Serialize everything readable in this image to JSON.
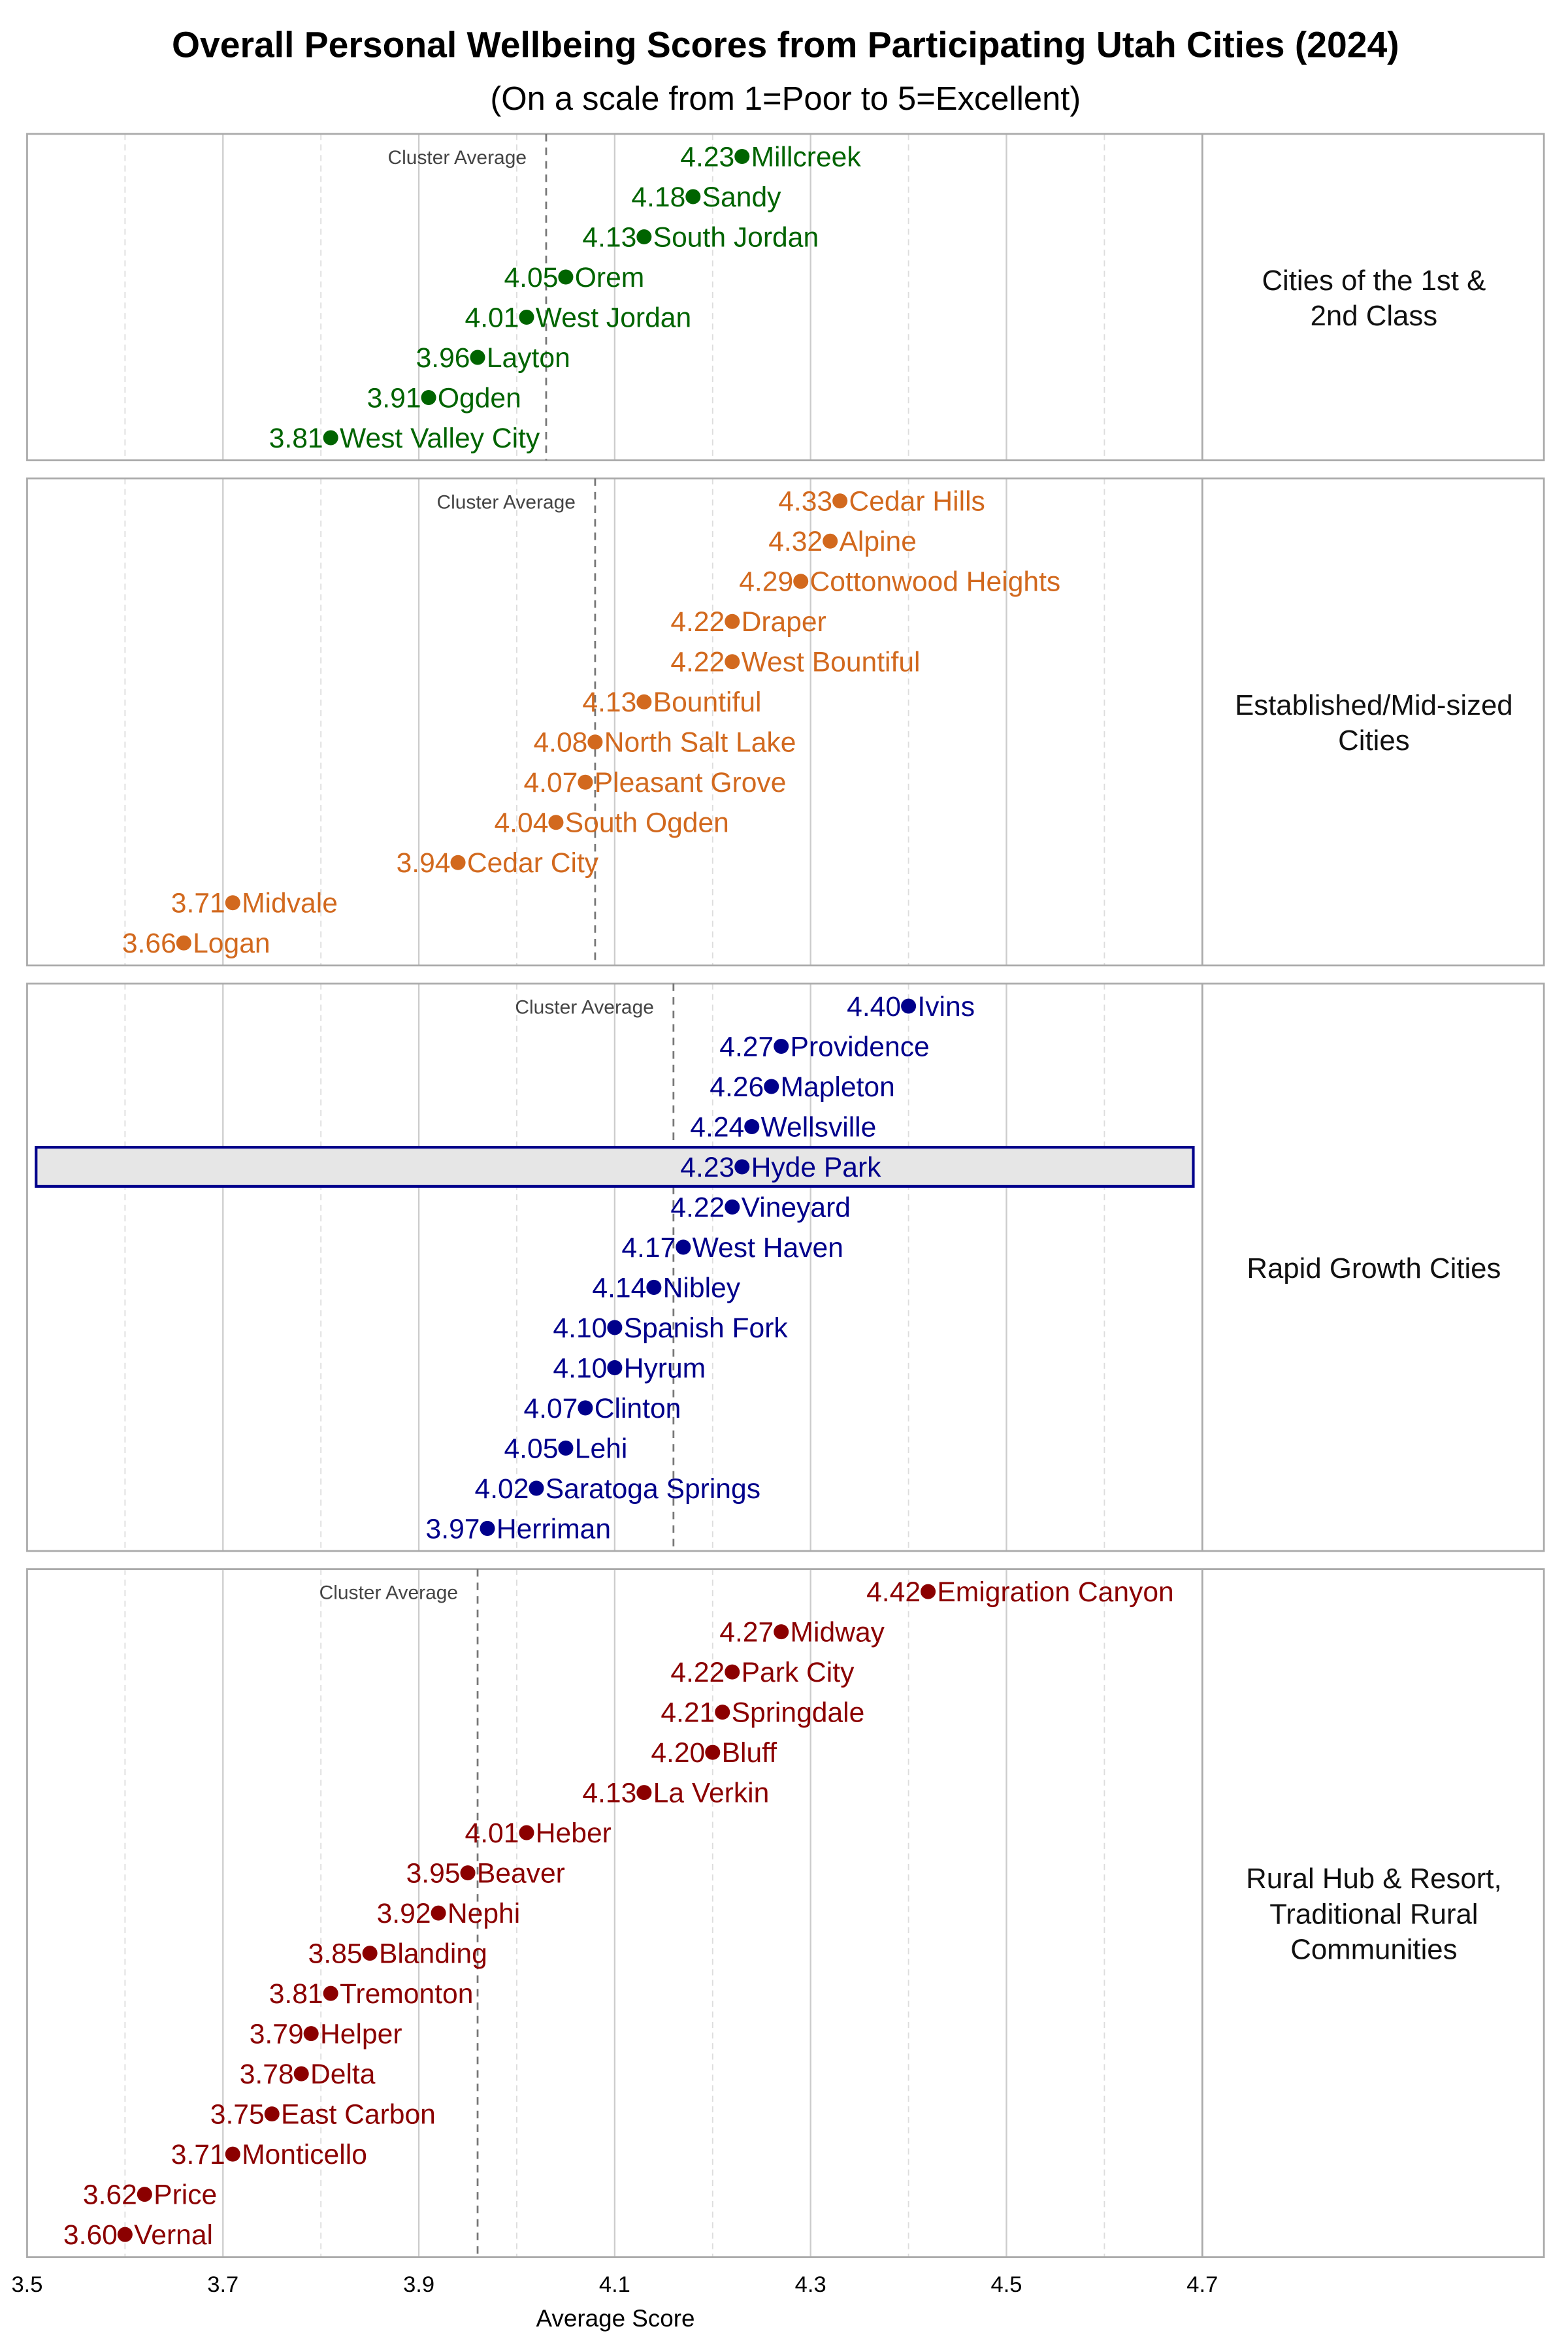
{
  "chart_data": {
    "type": "scatter",
    "title": "Overall Personal Wellbeing Scores from Participating Utah Cities (2024)",
    "subtitle": "(On a scale from 1=Poor to 5=Excellent)",
    "xlabel": "Average Score",
    "xlim": [
      3.5,
      4.7
    ],
    "xticks": [
      "3.5",
      "3.7",
      "3.9",
      "4.1",
      "4.3",
      "4.5",
      "4.7"
    ],
    "grid": true,
    "cluster_average_label": "Cluster Average",
    "highlighted_city": "Hyde Park",
    "panels": [
      {
        "name": "Cities of the 1st & 2nd Class",
        "label_lines": [
          "Cities of the 1st &",
          "2nd Class"
        ],
        "color": "#006400",
        "cluster_average": 4.03,
        "cities": [
          {
            "name": "Millcreek",
            "value": 4.23,
            "label": "4.23"
          },
          {
            "name": "Sandy",
            "value": 4.18,
            "label": "4.18"
          },
          {
            "name": "South Jordan",
            "value": 4.13,
            "label": "4.13"
          },
          {
            "name": "Orem",
            "value": 4.05,
            "label": "4.05"
          },
          {
            "name": "West Jordan",
            "value": 4.01,
            "label": "4.01"
          },
          {
            "name": "Layton",
            "value": 3.96,
            "label": "3.96"
          },
          {
            "name": "Ogden",
            "value": 3.91,
            "label": "3.91"
          },
          {
            "name": "West Valley City",
            "value": 3.81,
            "label": "3.81"
          }
        ]
      },
      {
        "name": "Established/Mid-sized Cities",
        "label_lines": [
          "Established/Mid-sized",
          "Cities"
        ],
        "color": "#D2691E",
        "cluster_average": 4.08,
        "cities": [
          {
            "name": "Cedar Hills",
            "value": 4.33,
            "label": "4.33"
          },
          {
            "name": "Alpine",
            "value": 4.32,
            "label": "4.32"
          },
          {
            "name": "Cottonwood Heights",
            "value": 4.29,
            "label": "4.29"
          },
          {
            "name": "Draper",
            "value": 4.22,
            "label": "4.22"
          },
          {
            "name": "West Bountiful",
            "value": 4.22,
            "label": "4.22"
          },
          {
            "name": "Bountiful",
            "value": 4.13,
            "label": "4.13"
          },
          {
            "name": "North Salt Lake",
            "value": 4.08,
            "label": "4.08"
          },
          {
            "name": "Pleasant Grove",
            "value": 4.07,
            "label": "4.07"
          },
          {
            "name": "South Ogden",
            "value": 4.04,
            "label": "4.04"
          },
          {
            "name": "Cedar City",
            "value": 3.94,
            "label": "3.94"
          },
          {
            "name": "Midvale",
            "value": 3.71,
            "label": "3.71"
          },
          {
            "name": "Logan",
            "value": 3.66,
            "label": "3.66"
          }
        ]
      },
      {
        "name": "Rapid Growth Cities",
        "label_lines": [
          "Rapid Growth Cities"
        ],
        "color": "#00008B",
        "cluster_average": 4.16,
        "cities": [
          {
            "name": "Ivins",
            "value": 4.4,
            "label": "4.40"
          },
          {
            "name": "Providence",
            "value": 4.27,
            "label": "4.27"
          },
          {
            "name": "Mapleton",
            "value": 4.26,
            "label": "4.26"
          },
          {
            "name": "Wellsville",
            "value": 4.24,
            "label": "4.24"
          },
          {
            "name": "Hyde Park",
            "value": 4.23,
            "label": "4.23"
          },
          {
            "name": "Vineyard",
            "value": 4.22,
            "label": "4.22"
          },
          {
            "name": "West Haven",
            "value": 4.17,
            "label": "4.17"
          },
          {
            "name": "Nibley",
            "value": 4.14,
            "label": "4.14"
          },
          {
            "name": "Spanish Fork",
            "value": 4.1,
            "label": "4.10"
          },
          {
            "name": "Hyrum",
            "value": 4.1,
            "label": "4.10"
          },
          {
            "name": "Clinton",
            "value": 4.07,
            "label": "4.07"
          },
          {
            "name": "Lehi",
            "value": 4.05,
            "label": "4.05"
          },
          {
            "name": "Saratoga Springs",
            "value": 4.02,
            "label": "4.02"
          },
          {
            "name": "Herriman",
            "value": 3.97,
            "label": "3.97"
          }
        ]
      },
      {
        "name": "Rural Hub & Resort, Traditional Rural Communities",
        "label_lines": [
          "Rural Hub & Resort,",
          "Traditional Rural",
          "Communities"
        ],
        "color": "#8B0000",
        "cluster_average": 3.96,
        "cities": [
          {
            "name": "Emigration Canyon",
            "value": 4.42,
            "label": "4.42"
          },
          {
            "name": "Midway",
            "value": 4.27,
            "label": "4.27"
          },
          {
            "name": "Park City",
            "value": 4.22,
            "label": "4.22"
          },
          {
            "name": "Springdale",
            "value": 4.21,
            "label": "4.21"
          },
          {
            "name": "Bluff",
            "value": 4.2,
            "label": "4.20"
          },
          {
            "name": "La Verkin",
            "value": 4.13,
            "label": "4.13"
          },
          {
            "name": "Heber",
            "value": 4.01,
            "label": "4.01"
          },
          {
            "name": "Beaver",
            "value": 3.95,
            "label": "3.95"
          },
          {
            "name": "Nephi",
            "value": 3.92,
            "label": "3.92"
          },
          {
            "name": "Blanding",
            "value": 3.85,
            "label": "3.85"
          },
          {
            "name": "Tremonton",
            "value": 3.81,
            "label": "3.81"
          },
          {
            "name": "Helper",
            "value": 3.79,
            "label": "3.79"
          },
          {
            "name": "Delta",
            "value": 3.78,
            "label": "3.78"
          },
          {
            "name": "East Carbon",
            "value": 3.75,
            "label": "3.75"
          },
          {
            "name": "Monticello",
            "value": 3.71,
            "label": "3.71"
          },
          {
            "name": "Price",
            "value": 3.62,
            "label": "3.62"
          },
          {
            "name": "Vernal",
            "value": 3.6,
            "label": "3.60"
          }
        ]
      }
    ]
  }
}
